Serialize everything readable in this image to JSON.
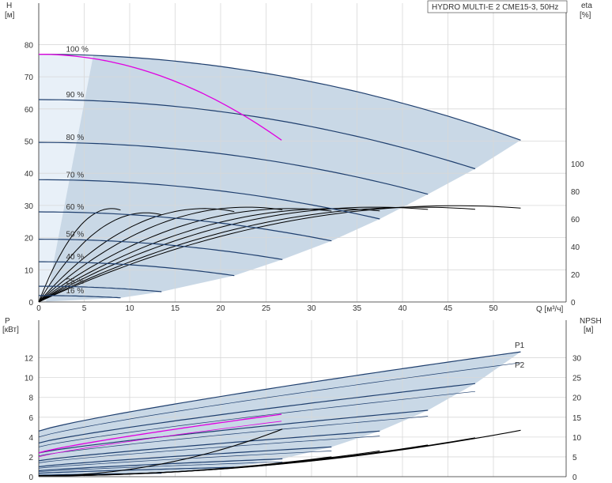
{
  "chart_data": {
    "type": "line",
    "title": "HYDRO MULTI-E 2 CME15-3, 50Hz",
    "x": {
      "label": "Q [м³/ч]",
      "ticks": [
        0,
        5,
        10,
        15,
        20,
        25,
        30,
        35,
        40,
        45,
        50
      ],
      "lim": [
        0,
        58
      ]
    },
    "top": {
      "y_left": {
        "label": "H",
        "unit": "[м]",
        "ticks": [
          0,
          10,
          20,
          30,
          40,
          50,
          60,
          70,
          80
        ],
        "lim": [
          0,
          86
        ]
      },
      "y_right": {
        "label": "eta",
        "unit": "[%]",
        "ticks": [
          0,
          20,
          40,
          60,
          80,
          100
        ],
        "lim": [
          0,
          200
        ]
      },
      "speed_curves": [
        {
          "label": "100 %",
          "h0": 77.0,
          "qmax": 53.0,
          "hend": 50.3
        },
        {
          "label": "90 %",
          "h0": 62.9,
          "qmax": 48.0,
          "hend": 41.4
        },
        {
          "label": "80 %",
          "h0": 49.6,
          "qmax": 42.8,
          "hend": 33.5
        },
        {
          "label": "70 %",
          "h0": 38.0,
          "qmax": 37.5,
          "hend": 25.8
        },
        {
          "label": "60 %",
          "h0": 28.0,
          "qmax": 32.2,
          "hend": 19.0
        },
        {
          "label": "50 %",
          "h0": 19.5,
          "qmax": 26.8,
          "hend": 13.2
        },
        {
          "label": "40 %",
          "h0": 12.5,
          "qmax": 21.5,
          "hend": 8.2
        },
        {
          "label": "25 %",
          "h0": 4.9,
          "qmax": 13.5,
          "hend": 3.2
        },
        {
          "label": "16 %",
          "h0": 2.0,
          "qmax": 9.0,
          "hend": 1.3
        }
      ],
      "highlight_curve": {
        "h0": 77.0,
        "qmax": 26.7,
        "hend": 50.3,
        "color": "#e000e0"
      },
      "eta_curves": [
        {
          "peak": 68,
          "qpeak": 39.0,
          "qmax": 53.0
        },
        {
          "peak": 67,
          "qpeak": 35.5,
          "qmax": 48.0
        },
        {
          "peak": 67,
          "qpeak": 31.5,
          "qmax": 42.8
        },
        {
          "peak": 66,
          "qpeak": 27.5,
          "qmax": 37.5
        },
        {
          "peak": 66,
          "qpeak": 23.5,
          "qmax": 32.2
        },
        {
          "peak": 67,
          "qpeak": 19.5,
          "qmax": 26.8
        },
        {
          "peak": 66,
          "qpeak": 15.5,
          "qmax": 21.5
        },
        {
          "peak": 63,
          "qpeak": 10.0,
          "qmax": 13.5
        },
        {
          "peak": 66,
          "qpeak": 6.8,
          "qmax": 9.0
        }
      ]
    },
    "bottom": {
      "y_left": {
        "label": "P",
        "unit": "[кВт]",
        "ticks": [
          0,
          2,
          4,
          6,
          8,
          10,
          12
        ],
        "lim": [
          0,
          14.2
        ]
      },
      "y_right": {
        "label": "NPSH",
        "unit": "[м]",
        "ticks": [
          0,
          5,
          10,
          15,
          20,
          25,
          30
        ],
        "lim": [
          0,
          35.5
        ]
      },
      "series_labels": [
        "P1",
        "P2"
      ],
      "p1_curves": [
        {
          "p0": 4.6,
          "pend": 12.6,
          "qmax": 53.0
        },
        {
          "p0": 3.4,
          "pend": 9.4,
          "qmax": 48.0
        },
        {
          "p0": 2.4,
          "pend": 6.7,
          "qmax": 42.8
        },
        {
          "p0": 1.6,
          "pend": 4.6,
          "qmax": 37.5
        },
        {
          "p0": 1.0,
          "pend": 3.0,
          "qmax": 32.2
        },
        {
          "p0": 0.6,
          "pend": 1.8,
          "qmax": 26.8
        },
        {
          "p0": 0.35,
          "pend": 0.95,
          "qmax": 21.5
        },
        {
          "p0": 0.15,
          "pend": 0.35,
          "qmax": 13.5
        }
      ],
      "p2_curves": [
        {
          "p0": 4.0,
          "pend": 11.5,
          "qmax": 53.0
        },
        {
          "p0": 3.0,
          "pend": 8.6,
          "qmax": 48.0
        },
        {
          "p0": 2.1,
          "pend": 6.1,
          "qmax": 42.8
        },
        {
          "p0": 1.4,
          "pend": 4.1,
          "qmax": 37.5
        },
        {
          "p0": 0.85,
          "pend": 2.6,
          "qmax": 32.2
        },
        {
          "p0": 0.5,
          "pend": 1.5,
          "qmax": 26.8
        }
      ],
      "highlight_p1": {
        "p0": 2.4,
        "pend": 6.3,
        "qmax": 26.7,
        "color": "#e000e0"
      },
      "highlight_p2": {
        "p0": 2.0,
        "pend": 5.6,
        "qmax": 26.7,
        "color": "#e000e0"
      },
      "npsh_curves": [
        {
          "n0": 0.3,
          "nend": 11.7,
          "qmax": 53.0
        },
        {
          "n0": 0.3,
          "nend": 9.8,
          "qmax": 48.0
        },
        {
          "n0": 0.3,
          "nend": 8.0,
          "qmax": 42.8
        },
        {
          "n0": 0.2,
          "nend": 6.5,
          "qmax": 37.5
        },
        {
          "n0": 0.2,
          "nend": 5.0,
          "qmax": 32.2
        },
        {
          "n0": 0.2,
          "nend": 12.0,
          "qmax": 26.8
        }
      ]
    },
    "colors": {
      "curve": "#1f3f6e",
      "envelope": "#c9d8e6",
      "envelope_light": "#e8f0f8",
      "highlight": "#e000e0",
      "eta": "#000000",
      "grid": "#d8d8d8"
    }
  }
}
